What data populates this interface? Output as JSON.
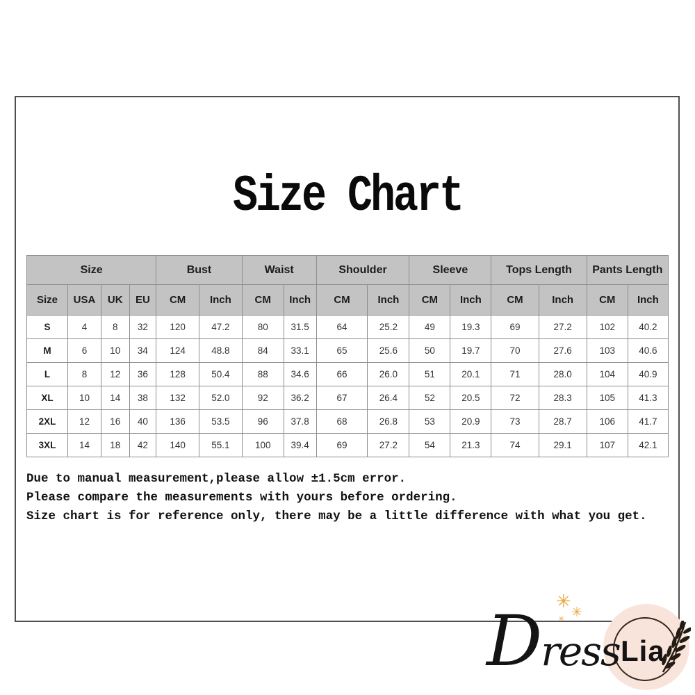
{
  "chart_data": {
    "type": "table",
    "title": "Size Chart",
    "column_groups": [
      {
        "label": "Size",
        "span": 4
      },
      {
        "label": "Bust",
        "span": 2
      },
      {
        "label": "Waist",
        "span": 2
      },
      {
        "label": "Shoulder",
        "span": 2
      },
      {
        "label": "Sleeve",
        "span": 2
      },
      {
        "label": "Tops Length",
        "span": 2
      },
      {
        "label": "Pants Length",
        "span": 2
      }
    ],
    "columns": [
      "Size",
      "USA",
      "UK",
      "EU",
      "CM",
      "Inch",
      "CM",
      "Inch",
      "CM",
      "Inch",
      "CM",
      "Inch",
      "CM",
      "Inch",
      "CM",
      "Inch"
    ],
    "rows": [
      [
        "S",
        "4",
        "8",
        "32",
        "120",
        "47.2",
        "80",
        "31.5",
        "64",
        "25.2",
        "49",
        "19.3",
        "69",
        "27.2",
        "102",
        "40.2"
      ],
      [
        "M",
        "6",
        "10",
        "34",
        "124",
        "48.8",
        "84",
        "33.1",
        "65",
        "25.6",
        "50",
        "19.7",
        "70",
        "27.6",
        "103",
        "40.6"
      ],
      [
        "L",
        "8",
        "12",
        "36",
        "128",
        "50.4",
        "88",
        "34.6",
        "66",
        "26.0",
        "51",
        "20.1",
        "71",
        "28.0",
        "104",
        "40.9"
      ],
      [
        "XL",
        "10",
        "14",
        "38",
        "132",
        "52.0",
        "92",
        "36.2",
        "67",
        "26.4",
        "52",
        "20.5",
        "72",
        "28.3",
        "105",
        "41.3"
      ],
      [
        "2XL",
        "12",
        "16",
        "40",
        "136",
        "53.5",
        "96",
        "37.8",
        "68",
        "26.8",
        "53",
        "20.9",
        "73",
        "28.7",
        "106",
        "41.7"
      ],
      [
        "3XL",
        "14",
        "18",
        "42",
        "140",
        "55.1",
        "100",
        "39.4",
        "69",
        "27.2",
        "54",
        "21.3",
        "74",
        "29.1",
        "107",
        "42.1"
      ]
    ]
  },
  "notes": {
    "line1": "Due to manual measurement,please allow ±1.5cm error.",
    "line2": "Please compare the measurements with yours before ordering.",
    "line3": "Size chart is for reference only, there may be a little difference with what you get."
  },
  "logo": {
    "script_cap": "D",
    "script_rest": "ress",
    "bold_text": "Lia",
    "sparkle": "✳"
  },
  "colors": {
    "header_bg": "#c3c3c3",
    "table_border": "#8d8d8d",
    "frame_border": "#4f4f4f",
    "text_dark": "#1c1c1c",
    "text_data": "#333333",
    "logo_circle_bg": "#f9e4db",
    "logo_ring": "#32271d",
    "logo_text": "#141414",
    "sparkle": "#e8a53c"
  }
}
